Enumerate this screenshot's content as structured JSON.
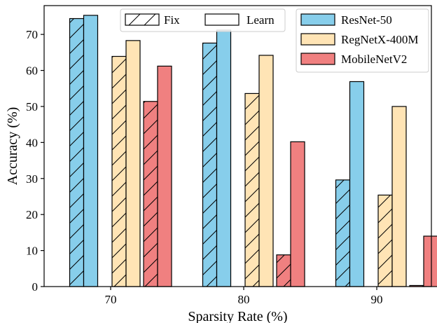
{
  "chart_data": {
    "type": "bar",
    "xlabel": "Sparsity Rate (%)",
    "ylabel": "Accuracy (%)",
    "ylim": [
      0,
      78
    ],
    "yticks": [
      0,
      10,
      20,
      30,
      40,
      50,
      60,
      70
    ],
    "categories": [
      "70",
      "80",
      "90"
    ],
    "series": [
      {
        "name": "ResNet-50",
        "mode": "Fix",
        "color": "#87CEEB",
        "values": [
          74.4,
          67.6,
          29.6
        ]
      },
      {
        "name": "ResNet-50",
        "mode": "Learn",
        "color": "#87CEEB",
        "values": [
          75.3,
          71.2,
          56.9
        ]
      },
      {
        "name": "RegNetX-400M",
        "mode": "Fix",
        "color": "#FFE4B5",
        "values": [
          63.9,
          53.6,
          25.4
        ]
      },
      {
        "name": "RegNetX-400M",
        "mode": "Learn",
        "color": "#FFE4B5",
        "values": [
          68.3,
          64.2,
          50.0
        ]
      },
      {
        "name": "MobileNetV2",
        "mode": "Fix",
        "color": "#F08080",
        "values": [
          51.4,
          8.8,
          0.3
        ]
      },
      {
        "name": "MobileNetV2",
        "mode": "Learn",
        "color": "#F08080",
        "values": [
          61.2,
          40.2,
          14.0
        ]
      }
    ],
    "legend_modes": [
      {
        "label": "Fix",
        "hatched": true
      },
      {
        "label": "Learn",
        "hatched": false
      }
    ],
    "legend_models": [
      {
        "label": "ResNet-50",
        "color": "#87CEEB"
      },
      {
        "label": "RegNetX-400M",
        "color": "#FFE4B5"
      },
      {
        "label": "MobileNetV2",
        "color": "#F08080"
      }
    ],
    "legend_modes_position": "top-center",
    "legend_models_position": "top-right",
    "grid": false
  }
}
